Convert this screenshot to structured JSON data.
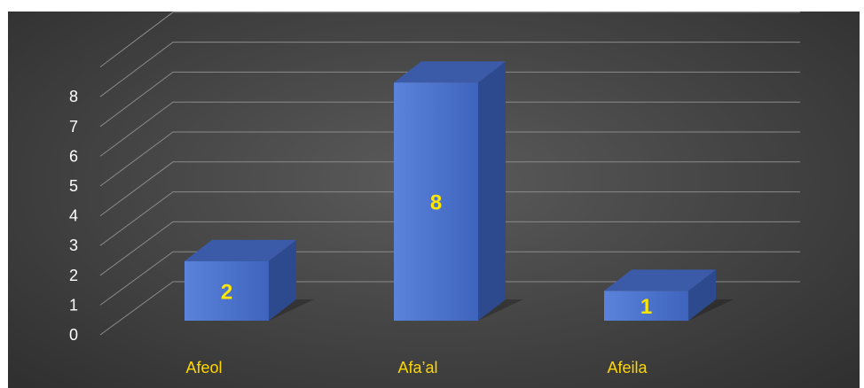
{
  "chart_data": {
    "type": "bar",
    "title": "",
    "xlabel": "",
    "ylabel": "",
    "categories": [
      "Afeol",
      "Afa’al",
      "Afeila"
    ],
    "values": [
      2,
      8,
      1
    ],
    "ylim": [
      0,
      8
    ],
    "yticks": [
      "0",
      "1",
      "2",
      "3",
      "4",
      "5",
      "6",
      "7",
      "8"
    ],
    "grid": true,
    "legend": "none",
    "style": "3d-column",
    "colors": {
      "bar_front": "#4a72cf",
      "bar_top": "#3b5aa8",
      "bar_side": "#2e4a8f",
      "data_label": "#ffe600",
      "category_label": "#ffd700",
      "tick_label": "#ffffff",
      "grid": "#8a8a8a"
    }
  }
}
